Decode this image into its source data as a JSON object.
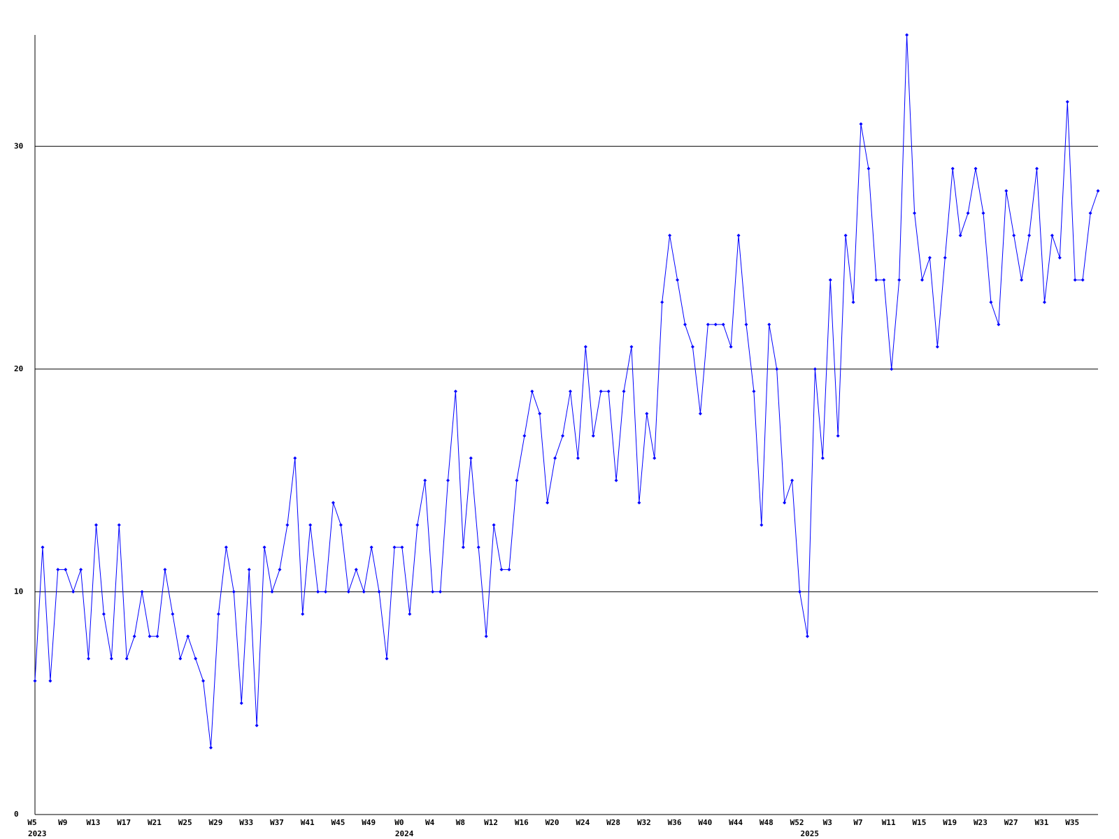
{
  "chart_data": {
    "type": "line",
    "categories": [
      "W5",
      null,
      null,
      null,
      "W9",
      null,
      null,
      null,
      "W13",
      null,
      null,
      null,
      "W17",
      null,
      null,
      null,
      "W21",
      null,
      null,
      null,
      "W25",
      null,
      null,
      null,
      "W29",
      null,
      null,
      null,
      "W33",
      null,
      null,
      null,
      "W37",
      null,
      null,
      null,
      "W41",
      null,
      null,
      null,
      "W45",
      null,
      null,
      null,
      "W49",
      null,
      null,
      null,
      "W0",
      null,
      null,
      null,
      "W4",
      null,
      null,
      null,
      "W8",
      null,
      null,
      null,
      "W12",
      null,
      null,
      null,
      "W16",
      null,
      null,
      null,
      "W20",
      null,
      null,
      null,
      "W24",
      null,
      null,
      null,
      "W28",
      null,
      null,
      null,
      "W32",
      null,
      null,
      null,
      "W36",
      null,
      null,
      null,
      "W40",
      null,
      null,
      null,
      "W44",
      null,
      null,
      null,
      "W48",
      null,
      null,
      null,
      "W52",
      null,
      null,
      null,
      "W3",
      null,
      null,
      null,
      "W7",
      null,
      null,
      null,
      "W11",
      null,
      null,
      null,
      "W15",
      null,
      null,
      null,
      "W19",
      null,
      null,
      null,
      "W23",
      null,
      null,
      null,
      "W27",
      null,
      null,
      null,
      "W31",
      null,
      null,
      null,
      "W35",
      null,
      null,
      null
    ],
    "x_years": [
      "2023",
      null,
      null,
      null,
      null,
      null,
      null,
      null,
      null,
      null,
      null,
      null,
      null,
      null,
      null,
      null,
      null,
      null,
      null,
      null,
      null,
      null,
      null,
      null,
      null,
      null,
      null,
      null,
      null,
      null,
      null,
      null,
      null,
      null,
      null,
      null,
      null,
      null,
      null,
      null,
      null,
      null,
      null,
      null,
      null,
      null,
      null,
      null,
      "2024",
      null,
      null,
      null,
      null,
      null,
      null,
      null,
      null,
      null,
      null,
      null,
      null,
      null,
      null,
      null,
      null,
      null,
      null,
      null,
      null,
      null,
      null,
      null,
      null,
      null,
      null,
      null,
      null,
      null,
      null,
      null,
      null,
      null,
      null,
      null,
      null,
      null,
      null,
      null,
      null,
      null,
      null,
      null,
      null,
      null,
      null,
      null,
      null,
      null,
      null,
      null,
      null,
      "2025",
      null,
      null,
      null,
      null,
      null,
      null,
      null,
      null,
      null,
      null,
      null,
      null,
      null,
      null,
      null,
      null,
      null,
      null,
      null,
      null,
      null,
      null,
      null,
      null,
      null,
      null,
      null,
      null,
      null,
      null,
      null,
      null,
      null,
      null,
      null,
      null,
      null,
      null
    ],
    "values": [
      6,
      12,
      6,
      11,
      11,
      10,
      11,
      7,
      13,
      9,
      7,
      13,
      7,
      8,
      10,
      8,
      8,
      11,
      9,
      7,
      8,
      7,
      6,
      3,
      9,
      12,
      10,
      5,
      11,
      4,
      12,
      10,
      11,
      13,
      16,
      9,
      13,
      10,
      10,
      14,
      13,
      10,
      11,
      10,
      12,
      10,
      7,
      12,
      12,
      9,
      13,
      15,
      10,
      10,
      15,
      19,
      12,
      16,
      12,
      8,
      13,
      11,
      11,
      15,
      17,
      19,
      18,
      14,
      16,
      17,
      19,
      16,
      21,
      17,
      19,
      19,
      15,
      19,
      21,
      14,
      18,
      16,
      23,
      26,
      24,
      22,
      21,
      18,
      22,
      22,
      22,
      21,
      26,
      22,
      19,
      13,
      22,
      20,
      14,
      15,
      10,
      8,
      20,
      16,
      24,
      17,
      26,
      23,
      31,
      29,
      24,
      24,
      20,
      24,
      35,
      27,
      24,
      25,
      21,
      25,
      29,
      26,
      27,
      29,
      27,
      23,
      22,
      28,
      26,
      24,
      26,
      29,
      23,
      26,
      25,
      32,
      24,
      24,
      27,
      28
    ],
    "color": "#0000ff",
    "ylim": [
      0,
      35
    ],
    "yticks": [
      0,
      10,
      20,
      30
    ],
    "grid": true
  }
}
